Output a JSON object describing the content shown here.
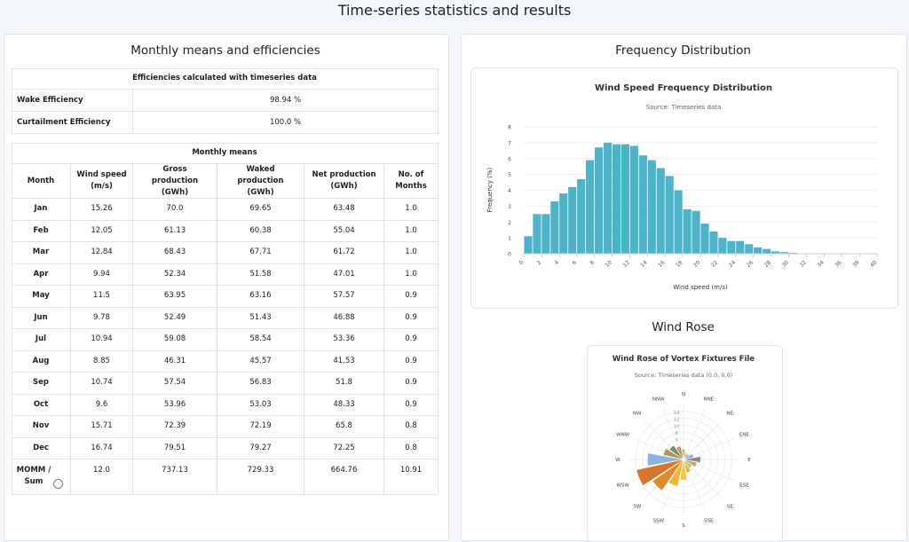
{
  "header": {
    "title": "Time-series statistics and results"
  },
  "left": {
    "title": "Monthly means and efficiencies",
    "efficiency_table": {
      "title": "Efficiencies calculated with timeseries data",
      "rows": [
        [
          "Wake Efficiency",
          "98.94 %"
        ],
        [
          "Curtailment Efficiency",
          "100.0 %"
        ]
      ]
    },
    "monthly_table": {
      "title": "Monthly means",
      "columns": [
        "Month",
        "Wind speed (m/s)",
        "Gross production (GWh)",
        "Waked production (GWh)",
        "Net production (GWh)",
        "No. of Months"
      ],
      "rows": [
        [
          "Jan",
          "15.26",
          "70.0",
          "69.65",
          "63.48",
          "1.0"
        ],
        [
          "Feb",
          "12.05",
          "61.13",
          "60.38",
          "55.04",
          "1.0"
        ],
        [
          "Mar",
          "12.84",
          "68.43",
          "67.71",
          "61.72",
          "1.0"
        ],
        [
          "Apr",
          "9.94",
          "52.34",
          "51.58",
          "47.01",
          "1.0"
        ],
        [
          "May",
          "11.5",
          "63.95",
          "63.16",
          "57.57",
          "0.9"
        ],
        [
          "Jun",
          "9.78",
          "52.49",
          "51.43",
          "46.88",
          "0.9"
        ],
        [
          "Jul",
          "10.94",
          "59.08",
          "58.54",
          "53.36",
          "0.9"
        ],
        [
          "Aug",
          "8.85",
          "46.31",
          "45.57",
          "41.53",
          "0.9"
        ],
        [
          "Sep",
          "10.74",
          "57.54",
          "56.83",
          "51.8",
          "0.9"
        ],
        [
          "Oct",
          "9.6",
          "53.96",
          "53.03",
          "48.33",
          "0.9"
        ],
        [
          "Nov",
          "15.71",
          "72.39",
          "72.19",
          "65.8",
          "0.8"
        ],
        [
          "Dec",
          "16.74",
          "79.51",
          "79.27",
          "72.25",
          "0.8"
        ],
        [
          "MOMM / Sum",
          "12.0",
          "737.13",
          "729.33",
          "664.76",
          "10.91"
        ]
      ]
    }
  },
  "right": {
    "frequency_title": "Frequency Distribution",
    "wind_rose_heading": "Wind Rose"
  },
  "chart_data": [
    {
      "type": "histogram",
      "title": "Wind Speed Frequency Distribution",
      "subtitle": "Source: Timeseries data",
      "x_label": "Wind speed (m/s)",
      "y_label": "Frequency (%)",
      "color": "#4eb3c9",
      "bins": [
        0,
        1,
        2,
        3,
        4,
        5,
        6,
        7,
        8,
        9,
        10,
        11,
        12,
        13,
        14,
        15,
        16,
        17,
        18,
        19,
        20,
        21,
        22,
        23,
        24,
        25,
        26,
        27,
        28,
        29,
        30,
        31,
        32
      ],
      "values": [
        1.1,
        2.5,
        2.5,
        3.3,
        3.8,
        4.2,
        4.7,
        5.9,
        6.7,
        7.0,
        6.9,
        6.9,
        6.8,
        6.2,
        5.9,
        5.4,
        4.9,
        4.0,
        2.8,
        2.7,
        1.9,
        1.4,
        1.0,
        0.8,
        0.8,
        0.6,
        0.4,
        0.3,
        0.15,
        0.1,
        0.05,
        0.02
      ],
      "xlim": [
        0,
        40
      ],
      "xticks": [
        0,
        2,
        4,
        6,
        8,
        10,
        12,
        14,
        16,
        18,
        20,
        22,
        24,
        26,
        28,
        30,
        32,
        34,
        36,
        38,
        40
      ],
      "ylim": [
        0,
        8
      ],
      "yticks": [
        0,
        1,
        2,
        3,
        4,
        5,
        6,
        7,
        8
      ],
      "grid": true
    },
    {
      "type": "wind_rose",
      "title": "Wind Rose of Vortex Fixtures File",
      "subtitle": "Source: Timeseries data (0.0, 0.0)",
      "categories": [
        "N",
        "NNE",
        "NE",
        "ENE",
        "E",
        "ESE",
        "SE",
        "SSE",
        "S",
        "SSW",
        "SW",
        "WSW",
        "W",
        "WNW",
        "NW",
        "NNW"
      ],
      "values": [
        3,
        2,
        2,
        3,
        5,
        4,
        3,
        4,
        6,
        8,
        11,
        14,
        10.5,
        6,
        5,
        4
      ],
      "colors": [
        "#c9b37a",
        "#b5c97a",
        "#7ab5c9",
        "#9a9ac9",
        "#8c8c8c",
        "#c9a37a",
        "#a3c97a",
        "#e0b84a",
        "#f2c94c",
        "#f0b23c",
        "#e08a2e",
        "#d9742c",
        "#8fb3d9",
        "#a89a5a",
        "#7a8c6e",
        "#c98a6e"
      ],
      "rlim": [
        0,
        16
      ],
      "rticks": [
        6,
        8,
        10,
        12,
        14
      ]
    }
  ]
}
